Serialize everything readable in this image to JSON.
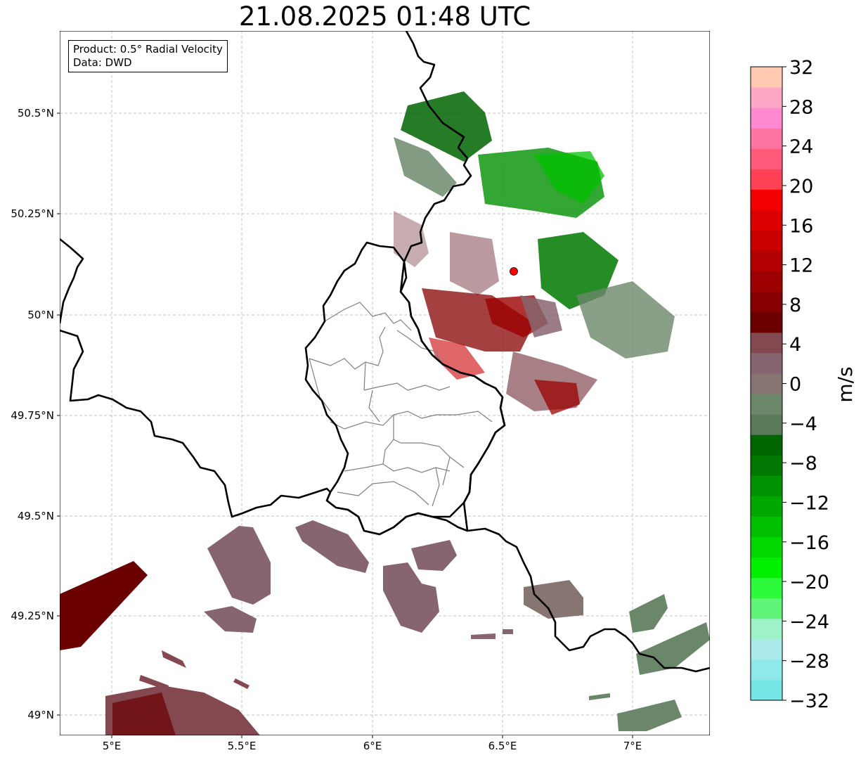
{
  "title": "21.08.2025 01:48 UTC",
  "info": {
    "product": "Product: 0.5° Radial Velocity",
    "source": "Data: DWD"
  },
  "axes": {
    "lon_ticks": [
      "5°E",
      "5.5°E",
      "6°E",
      "6.5°E",
      "7°E"
    ],
    "lat_ticks": [
      "50.5°N",
      "50.25°N",
      "50°N",
      "49.75°N",
      "49.5°N",
      "49.25°N",
      "49°N"
    ]
  },
  "colorbar": {
    "unit": "m/s",
    "ticks": [
      "32",
      "28",
      "24",
      "20",
      "16",
      "12",
      "8",
      "4",
      "0",
      "−4",
      "−8",
      "−12",
      "−16",
      "−20",
      "−24",
      "−28",
      "−32"
    ],
    "colors": [
      "#75e5e6",
      "#8de9ea",
      "#aaeaea",
      "#9ef2c8",
      "#60f478",
      "#2cfa3a",
      "#00f000",
      "#00d800",
      "#00c000",
      "#00a800",
      "#009000",
      "#007800",
      "#006400",
      "#597a59",
      "#6b876a",
      "#877572",
      "#876570",
      "#834850",
      "#6b0000",
      "#860000",
      "#9c0000",
      "#b20000",
      "#c80000",
      "#de0000",
      "#f40000",
      "#ff4055",
      "#ff5a7a",
      "#ff74a0",
      "#ff8ad2",
      "#ffa7c7",
      "#ffcaaf"
    ]
  },
  "radar": {
    "site_color": "#ff0000"
  }
}
